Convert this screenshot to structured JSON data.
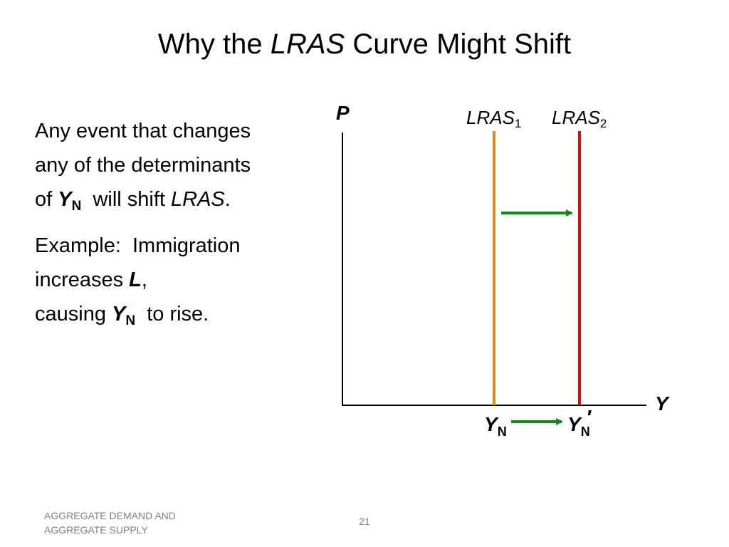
{
  "slide": {
    "title_pre": "Why the ",
    "title_em": "LRAS",
    "title_post": " Curve Might Shift",
    "body": {
      "p1_line1": "Any event that changes",
      "p1_line2": "any of the determinants",
      "p1_of": "of ",
      "p1_Y": "Y",
      "p1_N": "N",
      "p1_mid": "  will shift ",
      "p1_lras": "LRAS",
      "p1_end": ".",
      "p2_line1": "Example:  Immigration",
      "p2_incr": "increases ",
      "p2_L": "L",
      "p2_comma": ",",
      "p2_causing": "causing ",
      "p2_Y": "Y",
      "p2_N": "N",
      "p2_end": "  to rise."
    },
    "footer": {
      "left_line1": "AGGREGATE DEMAND AND",
      "left_line2": "AGGREGATE SUPPLY",
      "page_number": "21"
    }
  },
  "diagram": {
    "y_axis_label": "P",
    "x_axis_label": "Y",
    "curves": [
      {
        "name": "LRAS",
        "sub": "1",
        "color": "#d98c1f"
      },
      {
        "name": "LRAS",
        "sub": "2",
        "color": "#cc1111"
      }
    ],
    "ticks": [
      {
        "main": "Y",
        "sub": "N",
        "prime": ""
      },
      {
        "main": "Y",
        "sub": "N",
        "prime": "′"
      }
    ],
    "arrow_color": "#138a13",
    "axis_color": "#000000"
  }
}
